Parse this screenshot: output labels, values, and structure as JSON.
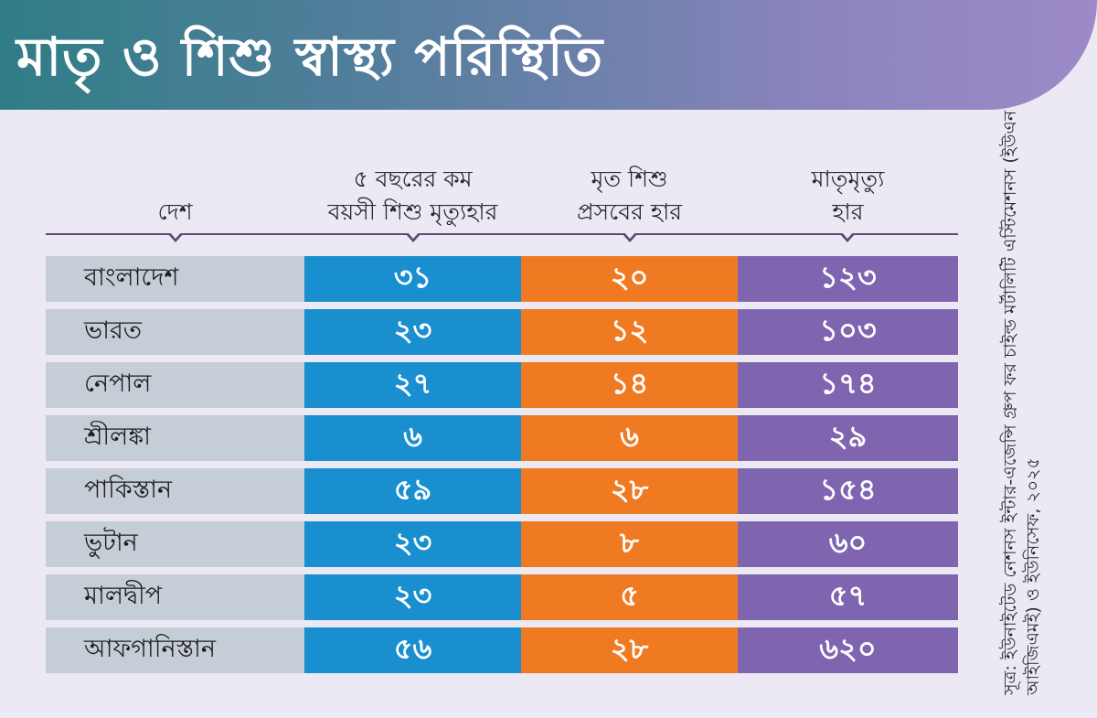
{
  "title": "মাতৃ ও শিশু স্বাস্থ্য পরিস্থিতি",
  "colors": {
    "country_cell": "#c5cdd6",
    "under5_mortality": "#1a8fcf",
    "stillbirth_rate": "#f07a22",
    "maternal_mortality": "#7f65b0"
  },
  "chart_data": {
    "type": "table",
    "title": "মাতৃ ও শিশু স্বাস্থ্য পরিস্থিতি",
    "columns": [
      {
        "line1": "দেশ",
        "line2": ""
      },
      {
        "line1": "৫ বছরের কম",
        "line2": "বয়সী শিশু মৃত্যুহার"
      },
      {
        "line1": "মৃত শিশু",
        "line2": "প্রসবের হার"
      },
      {
        "line1": "মাতৃমৃত্যু",
        "line2": "হার"
      }
    ],
    "rows": [
      {
        "country": "বাংলাদেশ",
        "under5": "৩১",
        "stillbirth": "২০",
        "maternal": "১২৩"
      },
      {
        "country": "ভারত",
        "under5": "২৩",
        "stillbirth": "১২",
        "maternal": "১০৩"
      },
      {
        "country": "নেপাল",
        "under5": "২৭",
        "stillbirth": "১৪",
        "maternal": "১৭৪"
      },
      {
        "country": "শ্রীলঙ্কা",
        "under5": "৬",
        "stillbirth": "৬",
        "maternal": "২৯"
      },
      {
        "country": "পাকিস্তান",
        "under5": "৫৯",
        "stillbirth": "২৮",
        "maternal": "১৫৪"
      },
      {
        "country": "ভুটান",
        "under5": "২৩",
        "stillbirth": "৮",
        "maternal": "৬০"
      },
      {
        "country": "মালদ্বীপ",
        "under5": "২৩",
        "stillbirth": "৫",
        "maternal": "৫৭"
      },
      {
        "country": "আফগানিস্তান",
        "under5": "৫৬",
        "stillbirth": "২৮",
        "maternal": "৬২০"
      }
    ],
    "source": "সূত্র: ইউনাইটেড নেশনস ইন্টার-এজেন্সি গ্রুপ ফর চাইল্ড মর্টালিটি এস্টিমেশনস (ইউএন আইজিএমই) ও ইউনিসেফ, ২০২৫"
  }
}
